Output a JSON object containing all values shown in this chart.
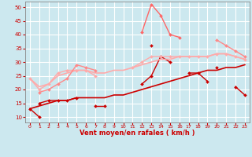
{
  "xlabel": "Vent moyen/en rafales ( km/h )",
  "xlim": [
    -0.5,
    23.5
  ],
  "ylim": [
    8,
    52
  ],
  "yticks": [
    10,
    15,
    20,
    25,
    30,
    35,
    40,
    45,
    50
  ],
  "xticks": [
    0,
    1,
    2,
    3,
    4,
    5,
    6,
    7,
    8,
    9,
    10,
    11,
    12,
    13,
    14,
    15,
    16,
    17,
    18,
    19,
    20,
    21,
    22,
    23
  ],
  "bg_color": "#cce8ef",
  "grid_color": "#ffffff",
  "lines": [
    {
      "segments": [
        {
          "x": [
            0,
            1
          ],
          "y": [
            13,
            10
          ]
        },
        {
          "x": [
            7,
            8
          ],
          "y": [
            14,
            14
          ]
        },
        {
          "x": [
            13
          ],
          "y": [
            36
          ]
        }
      ],
      "color": "#cc0000",
      "lw": 1.0,
      "marker": "D",
      "ms": 2.0
    },
    {
      "segments": [
        {
          "x": [
            1,
            2,
            3,
            4,
            5
          ],
          "y": [
            15,
            16,
            16,
            16,
            17
          ]
        },
        {
          "x": [
            12,
            13,
            14,
            15
          ],
          "y": [
            22,
            25,
            32,
            30
          ]
        },
        {
          "x": [
            17,
            18,
            19
          ],
          "y": [
            26,
            26,
            23
          ]
        },
        {
          "x": [
            20
          ],
          "y": [
            28
          ]
        },
        {
          "x": [
            22,
            23
          ],
          "y": [
            21,
            18
          ]
        }
      ],
      "color": "#cc0000",
      "lw": 1.0,
      "marker": "D",
      "ms": 2.0
    },
    {
      "segments": [
        {
          "x": [
            0,
            1,
            2,
            3,
            4,
            5,
            6,
            7,
            8,
            9,
            10,
            11,
            12,
            13,
            14,
            15,
            16,
            17,
            18,
            19,
            20,
            21,
            22,
            23
          ],
          "y": [
            13,
            14,
            15,
            16,
            16,
            17,
            17,
            17,
            17,
            18,
            18,
            19,
            20,
            21,
            22,
            23,
            24,
            25,
            26,
            27,
            27,
            28,
            28,
            29
          ]
        }
      ],
      "color": "#cc0000",
      "lw": 1.2,
      "marker": null,
      "ms": 0
    },
    {
      "segments": [
        {
          "x": [
            0,
            1,
            2,
            3,
            4,
            5,
            6,
            7
          ],
          "y": [
            24,
            20,
            22,
            26,
            27,
            27,
            27,
            25
          ]
        },
        {
          "x": [
            11,
            12,
            13,
            14,
            15,
            16,
            17,
            18,
            19,
            20,
            21,
            22,
            23
          ],
          "y": [
            28,
            30,
            32,
            32,
            32,
            32,
            32,
            32,
            32,
            33,
            33,
            32,
            31
          ]
        }
      ],
      "color": "#ffaaaa",
      "lw": 1.0,
      "marker": "D",
      "ms": 2.0
    },
    {
      "segments": [
        {
          "x": [
            0,
            1,
            2,
            3,
            4,
            5,
            6,
            7,
            8,
            9,
            10,
            11,
            12,
            13,
            14,
            15,
            16,
            17,
            18,
            19,
            20,
            21,
            22,
            23
          ],
          "y": [
            24,
            21,
            22,
            25,
            26,
            27,
            27,
            26,
            26,
            27,
            27,
            28,
            29,
            30,
            31,
            31,
            32,
            32,
            32,
            32,
            33,
            33,
            32,
            31
          ]
        }
      ],
      "color": "#ffaaaa",
      "lw": 1.2,
      "marker": null,
      "ms": 0
    },
    {
      "segments": [
        {
          "x": [
            1,
            2,
            3,
            4,
            5,
            6,
            7
          ],
          "y": [
            19,
            20,
            22,
            24,
            29,
            28,
            27
          ]
        },
        {
          "x": [
            20,
            21,
            22,
            23
          ],
          "y": [
            38,
            36,
            34,
            32
          ]
        }
      ],
      "color": "#ff8888",
      "lw": 1.0,
      "marker": "D",
      "ms": 2.0
    },
    {
      "segments": [
        {
          "x": [
            12,
            13,
            14,
            15,
            16
          ],
          "y": [
            41,
            51,
            47,
            40,
            39
          ]
        }
      ],
      "color": "#ff6666",
      "lw": 1.0,
      "marker": "D",
      "ms": 2.0
    }
  ]
}
